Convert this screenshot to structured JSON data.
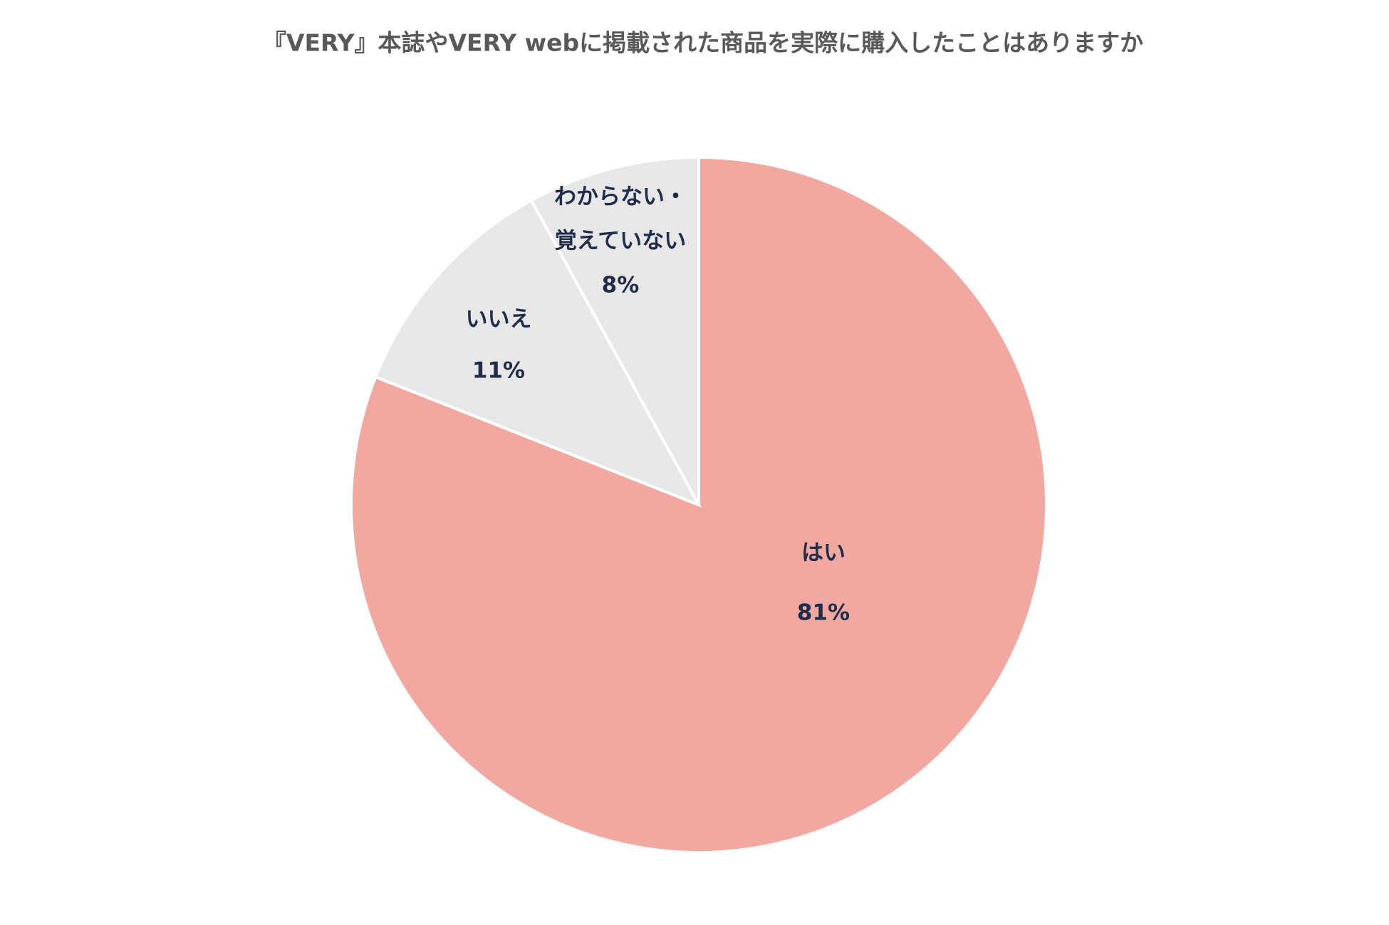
{
  "chart_data": {
    "type": "pie",
    "title": "『VERY』本誌やVERY webに掲載された商品を実際に購入したことはありますか",
    "categories": [
      "はい",
      "いいえ",
      [
        "わからない・",
        "覚えていない"
      ]
    ],
    "values": [
      81,
      11,
      8
    ],
    "value_labels": [
      "81%",
      "11%",
      "8%"
    ],
    "colors": [
      "#f0a8a0",
      "#e7e7e7",
      "#e7e7e7"
    ]
  }
}
